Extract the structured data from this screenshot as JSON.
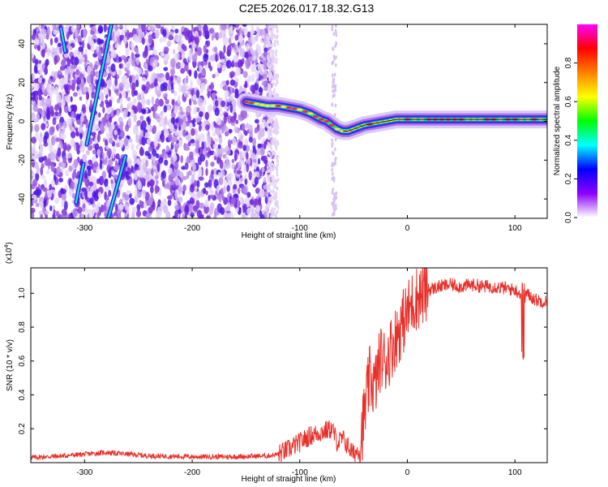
{
  "title": "C2E5.2026.017.18.32.G13",
  "chart_data": [
    {
      "type": "heatmap",
      "name": "spectrogram",
      "xlabel": "Height of straight line (km)",
      "ylabel": "Frequency (Hz)",
      "xlim": [
        -350,
        130
      ],
      "ylim": [
        -50,
        50
      ],
      "xticks": [
        -300,
        -200,
        -100,
        0,
        100
      ],
      "yticks": [
        -40,
        -20,
        0,
        20,
        40
      ],
      "colorbar": {
        "label": "Normalized spectral amplitude",
        "range": [
          0,
          1
        ],
        "ticks": [
          0.0,
          0.2,
          0.4,
          0.6,
          0.8
        ],
        "colors": [
          "#ffffff",
          "#8b00ff",
          "#0000ff",
          "#00ffff",
          "#00ff00",
          "#ffff00",
          "#ff8000",
          "#ff0000",
          "#ff00ff"
        ]
      },
      "ridge": {
        "x": [
          -150,
          -140,
          -130,
          -120,
          -110,
          -100,
          -90,
          -80,
          -75,
          -70,
          -65,
          -60,
          -55,
          -50,
          -45,
          -40,
          -30,
          -20,
          -10,
          0,
          20,
          50,
          80,
          100,
          130
        ],
        "y": [
          10,
          9,
          8,
          8,
          7,
          6,
          4,
          1,
          0,
          -2,
          -4,
          -5,
          -5,
          -4,
          -3,
          -2,
          -1,
          0,
          1,
          1,
          1,
          1,
          1,
          1,
          1
        ]
      },
      "streaks": [
        {
          "x": [
            -318,
            -322
          ],
          "y": [
            36,
            48
          ]
        },
        {
          "x": [
            -298,
            -275
          ],
          "y": [
            -12,
            50
          ]
        },
        {
          "x": [
            -308,
            -301
          ],
          "y": [
            -42,
            -22
          ]
        },
        {
          "x": [
            -278,
            -262
          ],
          "y": [
            -50,
            -18
          ]
        }
      ]
    },
    {
      "type": "line",
      "name": "snr",
      "xlabel": "Height of straight line (km)",
      "ylabel": "SNR (10 * v/v)",
      "multiplier": "(x10",
      "multiplier_exp": "4",
      "xlim": [
        -350,
        130
      ],
      "ylim": [
        0,
        1.15
      ],
      "xticks": [
        -300,
        -200,
        -100,
        0,
        100
      ],
      "yticks": [
        0.2,
        0.4,
        0.6,
        0.8,
        1.0
      ],
      "color": "#e8302a",
      "series": [
        {
          "name": "SNR",
          "x": [
            -350,
            -320,
            -300,
            -280,
            -260,
            -240,
            -200,
            -160,
            -130,
            -120,
            -110,
            -100,
            -90,
            -80,
            -70,
            -65,
            -60,
            -50,
            -45,
            -40,
            -35,
            -30,
            -25,
            -20,
            -15,
            -10,
            -5,
            0,
            5,
            10,
            15,
            20,
            25,
            30,
            40,
            50,
            60,
            70,
            80,
            90,
            100,
            105,
            108,
            110,
            115,
            120,
            130
          ],
          "y": [
            0.03,
            0.04,
            0.05,
            0.06,
            0.05,
            0.04,
            0.035,
            0.035,
            0.04,
            0.05,
            0.08,
            0.12,
            0.16,
            0.18,
            0.2,
            0.12,
            0.14,
            0.05,
            0.08,
            0.28,
            0.5,
            0.45,
            0.62,
            0.6,
            0.68,
            0.75,
            0.82,
            0.88,
            0.95,
            0.98,
            1.0,
            1.02,
            1.03,
            1.04,
            1.05,
            1.04,
            1.05,
            1.04,
            1.04,
            1.03,
            1.02,
            1.0,
            0.9,
            1.0,
            0.98,
            0.96,
            0.95
          ]
        }
      ]
    }
  ]
}
